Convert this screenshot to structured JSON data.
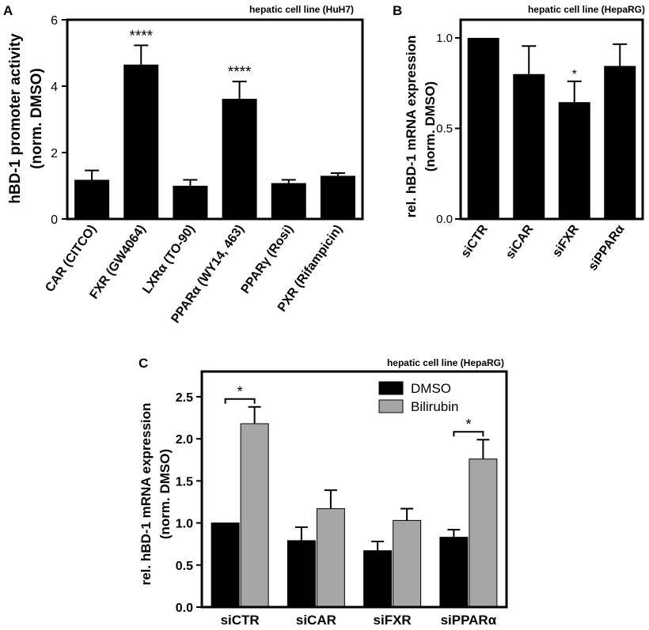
{
  "chart_data": [
    {
      "panel": "A",
      "type": "bar",
      "title": "hepatic cell line (HuH7)",
      "ylabel_line1": "hBD-1 promoter activity",
      "ylabel_line2": "(norm. DMSO)",
      "ylim": [
        0,
        6
      ],
      "yticks": [
        "0",
        "2",
        "4",
        "6"
      ],
      "ytick_values": [
        0,
        2,
        4,
        6
      ],
      "categories": [
        "CAR (CITCO)",
        "FXR (GW4064)",
        "LXRα (TO-90)",
        "PPARα (WY14, 463)",
        "PPARγ (Rosi)",
        "PXR (Rifampicin)"
      ],
      "values": [
        1.18,
        4.65,
        1.0,
        3.62,
        1.08,
        1.3
      ],
      "errors": [
        0.28,
        0.58,
        0.18,
        0.52,
        0.1,
        0.08
      ],
      "annotations": [
        "",
        "****",
        "",
        "****",
        "",
        ""
      ]
    },
    {
      "panel": "B",
      "type": "bar",
      "title": "hepatic cell line  (HepaRG)",
      "ylabel_line1": "rel. hBD-1 mRNA expression",
      "ylabel_line2": "(norm. DMSO)",
      "ylim": [
        0,
        1.1
      ],
      "yticks": [
        "0.0",
        "0.5",
        "1.0"
      ],
      "ytick_values": [
        0,
        0.5,
        1.0
      ],
      "categories": [
        "siCTR",
        "siCAR",
        "siFXR",
        "siPPARα"
      ],
      "values": [
        1.0,
        0.8,
        0.645,
        0.845
      ],
      "errors": [
        0,
        0.155,
        0.115,
        0.12
      ],
      "annotations": [
        "",
        "",
        "*",
        ""
      ]
    },
    {
      "panel": "C",
      "type": "bar",
      "title": "hepatic cell line  (HepaRG)",
      "ylabel_line1": "rel. hBD-1 mRNA expression",
      "ylabel_line2": "(norm. DMSO)",
      "ylim": [
        0,
        2.8
      ],
      "yticks": [
        "0.0",
        "0.5",
        "1.0",
        "1.5",
        "2.0",
        "2.5"
      ],
      "ytick_values": [
        0,
        0.5,
        1.0,
        1.5,
        2.0,
        2.5
      ],
      "categories": [
        "siCTR",
        "siCAR",
        "siFXR",
        "siPPARα"
      ],
      "series": [
        {
          "name": "DMSO",
          "color": "#000000",
          "values": [
            1.0,
            0.79,
            0.67,
            0.83
          ],
          "errors": [
            0,
            0.16,
            0.11,
            0.09
          ]
        },
        {
          "name": "Bilirubin",
          "color": "#a6a6a6",
          "values": [
            2.18,
            1.17,
            1.03,
            1.76
          ],
          "errors": [
            0.2,
            0.22,
            0.14,
            0.23
          ]
        }
      ],
      "significance": [
        {
          "category_index": 0,
          "label": "*"
        },
        {
          "category_index": 3,
          "label": "*"
        }
      ]
    }
  ]
}
